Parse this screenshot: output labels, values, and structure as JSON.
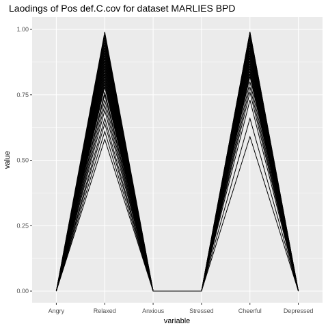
{
  "chart_data": {
    "type": "line",
    "title": "Laodings of Pos def.C.cov for dataset MARLIES BPD",
    "xlabel": "variable",
    "ylabel": "value",
    "categories": [
      "Angry",
      "Relaxed",
      "Anxious",
      "Stressed",
      "Cheerful",
      "Depressed"
    ],
    "ylim": [
      0,
      1
    ],
    "yticks": [
      0,
      0.25,
      0.5,
      0.75,
      1
    ],
    "ytick_labels": [
      "0.00",
      "0.25",
      "0.50",
      "0.75",
      "1.00"
    ],
    "grid": true,
    "legend": "none",
    "colors": {
      "panel": "#ebebeb",
      "grid": "#ffffff",
      "line": "#000000"
    },
    "series": [
      {
        "values": [
          0,
          0.58,
          0,
          0,
          0.59,
          0
        ]
      },
      {
        "values": [
          0,
          0.61,
          0,
          0,
          0.66,
          0
        ]
      },
      {
        "values": [
          0,
          0.64,
          0,
          0,
          0.73,
          0
        ]
      },
      {
        "values": [
          0,
          0.66,
          0,
          0,
          0.76,
          0
        ]
      },
      {
        "values": [
          0,
          0.69,
          0,
          0,
          0.78,
          0
        ]
      },
      {
        "values": [
          0,
          0.71,
          0,
          0,
          0.8,
          0
        ]
      },
      {
        "values": [
          0,
          0.73,
          0,
          0,
          0.82,
          0
        ]
      },
      {
        "values": [
          0,
          0.75,
          0,
          0,
          0.83,
          0
        ]
      },
      {
        "values": [
          0,
          0.76,
          0,
          0,
          0.84,
          0
        ]
      },
      {
        "values": [
          0,
          0.78,
          0,
          0,
          0.85,
          0
        ]
      },
      {
        "values": [
          0,
          0.79,
          0,
          0,
          0.86,
          0
        ]
      },
      {
        "values": [
          0,
          0.8,
          0,
          0,
          0.87,
          0
        ]
      },
      {
        "values": [
          0,
          0.81,
          0,
          0,
          0.88,
          0
        ]
      },
      {
        "values": [
          0,
          0.82,
          0,
          0,
          0.89,
          0
        ]
      },
      {
        "values": [
          0,
          0.83,
          0,
          0,
          0.9,
          0
        ]
      },
      {
        "values": [
          0,
          0.84,
          0,
          0,
          0.9,
          0
        ]
      },
      {
        "values": [
          0,
          0.85,
          0,
          0,
          0.91,
          0
        ]
      },
      {
        "values": [
          0,
          0.86,
          0,
          0,
          0.92,
          0
        ]
      },
      {
        "values": [
          0,
          0.87,
          0,
          0,
          0.92,
          0
        ]
      },
      {
        "values": [
          0,
          0.88,
          0,
          0,
          0.93,
          0
        ]
      },
      {
        "values": [
          0,
          0.89,
          0,
          0,
          0.94,
          0
        ]
      },
      {
        "values": [
          0,
          0.9,
          0,
          0,
          0.94,
          0
        ]
      },
      {
        "values": [
          0,
          0.91,
          0,
          0,
          0.95,
          0
        ]
      },
      {
        "values": [
          0,
          0.92,
          0,
          0,
          0.95,
          0
        ]
      },
      {
        "values": [
          0,
          0.93,
          0,
          0,
          0.96,
          0
        ]
      },
      {
        "values": [
          0,
          0.94,
          0,
          0,
          0.97,
          0
        ]
      },
      {
        "values": [
          0,
          0.95,
          0,
          0,
          0.97,
          0
        ]
      },
      {
        "values": [
          0,
          0.96,
          0,
          0,
          0.98,
          0
        ]
      },
      {
        "values": [
          0,
          0.97,
          0,
          0,
          0.98,
          0
        ]
      },
      {
        "values": [
          0,
          0.98,
          0,
          0,
          0.99,
          0
        ]
      },
      {
        "values": [
          0,
          0.99,
          0,
          0,
          0.99,
          0
        ]
      }
    ]
  }
}
